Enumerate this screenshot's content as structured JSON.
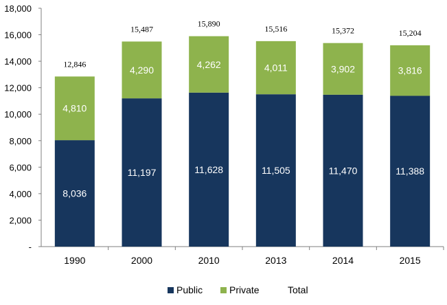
{
  "chart_data": {
    "type": "bar",
    "stacked": true,
    "categories": [
      "1990",
      "2000",
      "2010",
      "2013",
      "2014",
      "2015"
    ],
    "series": [
      {
        "name": "Public",
        "color": "#17365d",
        "values": [
          8036,
          11197,
          11628,
          11505,
          11470,
          11388
        ],
        "labels": [
          "8,036",
          "11,197",
          "11,628",
          "11,505",
          "11,470",
          "11,388"
        ]
      },
      {
        "name": "Private",
        "color": "#8eb34d",
        "values": [
          4810,
          4290,
          4262,
          4011,
          3902,
          3816
        ],
        "labels": [
          "4,810",
          "4,290",
          "4,262",
          "4,011",
          "3,902",
          "3,816"
        ]
      }
    ],
    "totals": {
      "name": "Total",
      "values": [
        12846,
        15487,
        15890,
        15516,
        15372,
        15204
      ],
      "labels": [
        "12,846",
        "15,487",
        "15,890",
        "15,516",
        "15,372",
        "15,204"
      ]
    },
    "ylim": [
      0,
      18000
    ],
    "yticks": [
      0,
      2000,
      4000,
      6000,
      8000,
      10000,
      12000,
      14000,
      16000,
      18000
    ],
    "ytick_labels": [
      "-",
      "2,000",
      "4,000",
      "6,000",
      "8,000",
      "10,000",
      "12,000",
      "14,000",
      "16,000",
      "18,000"
    ],
    "title": "",
    "xlabel": "",
    "ylabel": "",
    "grid": false,
    "legend_position": "bottom-center"
  }
}
